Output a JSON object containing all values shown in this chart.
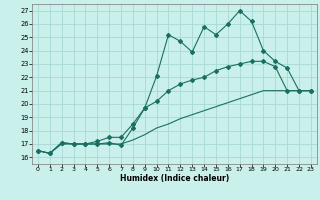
{
  "xlabel": "Humidex (Indice chaleur)",
  "background_color": "#caf0ec",
  "grid_color": "#a8d8d4",
  "line_color": "#1a7060",
  "xlim": [
    -0.5,
    23.5
  ],
  "ylim": [
    15.5,
    27.5
  ],
  "yticks": [
    16,
    17,
    18,
    19,
    20,
    21,
    22,
    23,
    24,
    25,
    26,
    27
  ],
  "xticks": [
    0,
    1,
    2,
    3,
    4,
    5,
    6,
    7,
    8,
    9,
    10,
    11,
    12,
    13,
    14,
    15,
    16,
    17,
    18,
    19,
    20,
    21,
    22,
    23
  ],
  "series1_y": [
    16.5,
    16.3,
    17.1,
    17.0,
    17.0,
    17.0,
    17.1,
    16.9,
    18.2,
    19.7,
    22.1,
    25.2,
    24.7,
    23.9,
    25.8,
    25.2,
    26.0,
    27.0,
    26.2,
    24.0,
    23.2,
    22.7,
    21.0,
    21.0
  ],
  "series2_y": [
    16.5,
    16.3,
    17.1,
    17.0,
    17.0,
    17.2,
    17.5,
    17.5,
    18.5,
    19.7,
    20.2,
    21.0,
    21.5,
    21.8,
    22.0,
    22.5,
    22.8,
    23.0,
    23.2,
    23.2,
    22.8,
    21.0,
    21.0,
    21.0
  ],
  "series3_y": [
    16.5,
    16.3,
    17.0,
    17.0,
    17.0,
    17.0,
    17.0,
    17.0,
    17.3,
    17.7,
    18.2,
    18.5,
    18.9,
    19.2,
    19.5,
    19.8,
    20.1,
    20.4,
    20.7,
    21.0,
    21.0,
    21.0,
    21.0,
    21.0
  ]
}
